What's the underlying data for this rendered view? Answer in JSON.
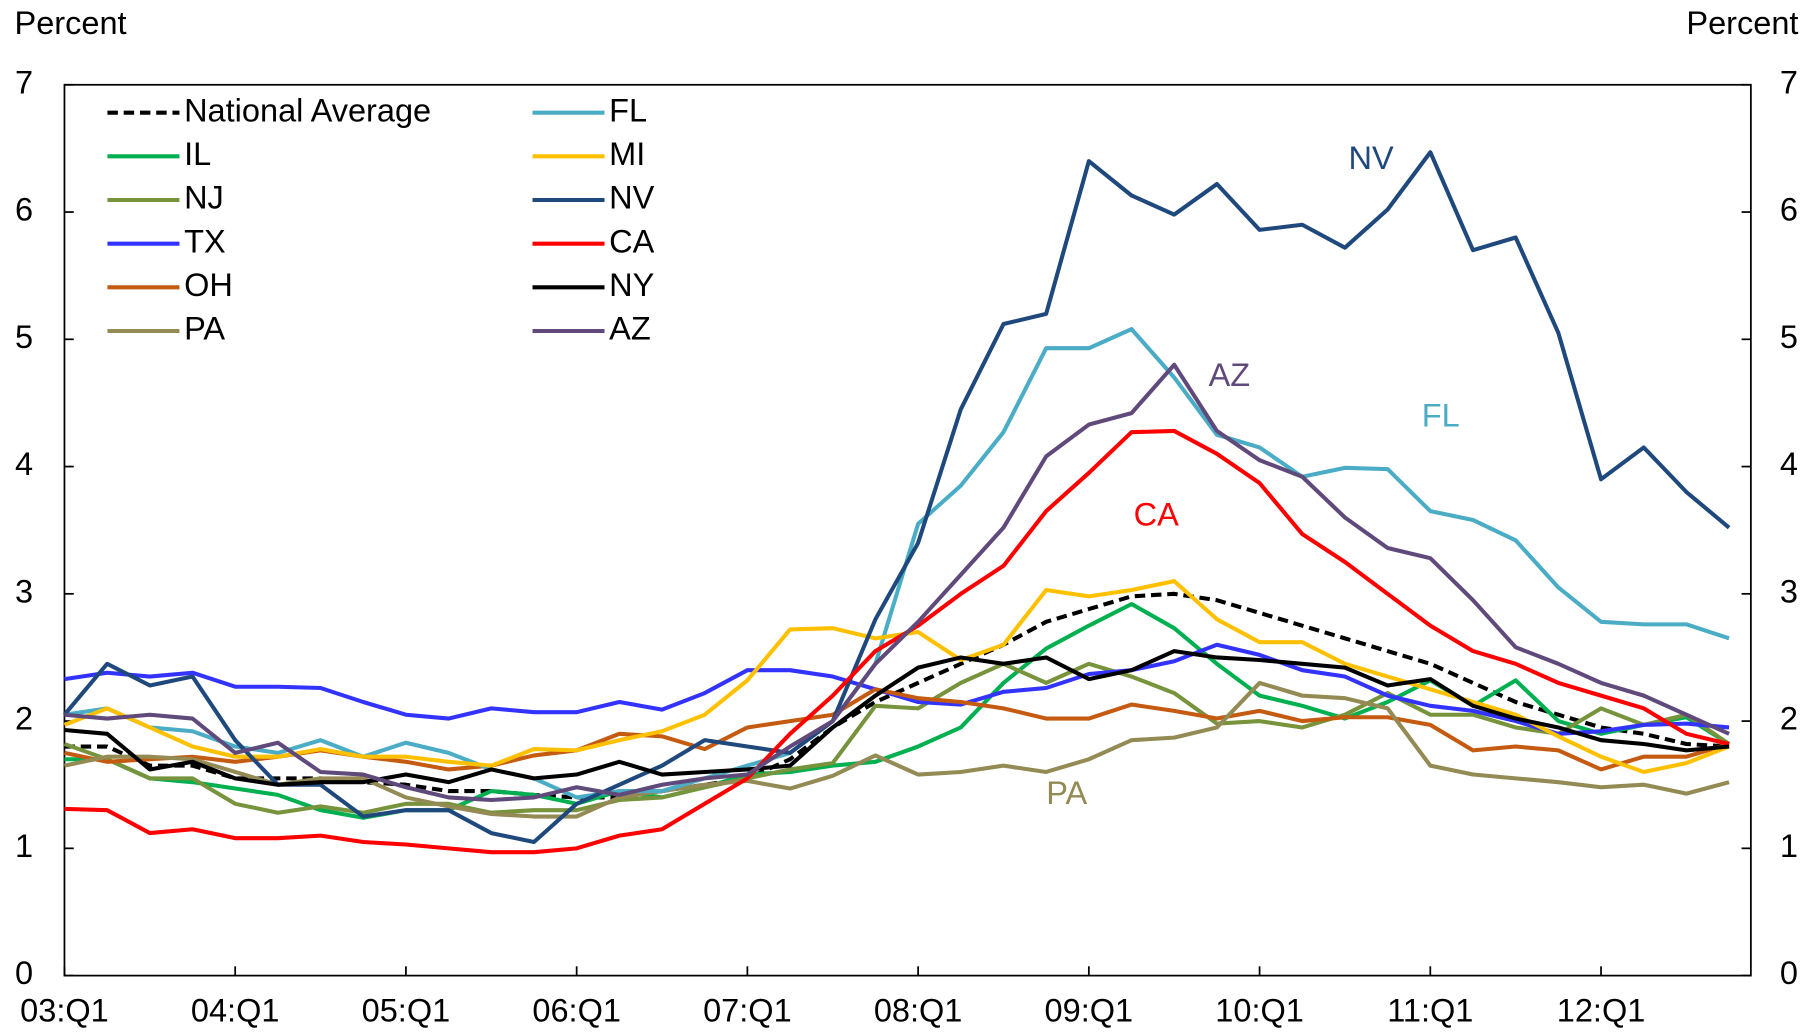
{
  "chart_data": {
    "type": "line",
    "y_label": "Percent",
    "y2_label": "Percent",
    "categories": [
      "03:Q1",
      null,
      null,
      null,
      "04:Q1",
      null,
      null,
      null,
      "05:Q1",
      null,
      null,
      null,
      "06:Q1",
      null,
      null,
      null,
      "07:Q1",
      null,
      null,
      null,
      "08:Q1",
      null,
      null,
      null,
      "09:Q1",
      null,
      null,
      null,
      "10:Q1",
      null,
      null,
      null,
      "11:Q1",
      null,
      null,
      null,
      "12:Q1",
      null,
      null,
      null
    ],
    "ylim": [
      0,
      7
    ],
    "yticks": [
      0,
      1,
      2,
      3,
      4,
      5,
      6,
      7
    ],
    "y2lim": [
      0,
      7
    ],
    "y2ticks": [
      0,
      1,
      2,
      3,
      4,
      5,
      6,
      7
    ],
    "grid": false,
    "legend": "upper left",
    "annotations": [
      "NV",
      "AZ",
      "FL",
      "CA",
      "PA"
    ],
    "series": [
      {
        "name": "National Average",
        "color": "#000000",
        "dash": true,
        "values": [
          1.8,
          1.8,
          1.65,
          1.65,
          1.55,
          1.55,
          1.55,
          1.52,
          1.5,
          1.45,
          1.45,
          1.42,
          1.4,
          1.4,
          1.45,
          1.5,
          1.55,
          1.7,
          1.95,
          2.15,
          2.3,
          2.45,
          2.6,
          2.78,
          2.88,
          2.98,
          3.0,
          2.95,
          2.85,
          2.75,
          2.65,
          2.55,
          2.45,
          2.3,
          2.15,
          2.05,
          1.95,
          1.9,
          1.82,
          1.8
        ]
      },
      {
        "name": "IL",
        "color": "#00b050",
        "values": [
          1.7,
          1.7,
          1.55,
          1.52,
          1.47,
          1.42,
          1.3,
          1.24,
          1.3,
          1.3,
          1.45,
          1.42,
          1.35,
          1.45,
          1.4,
          1.48,
          1.58,
          1.6,
          1.65,
          1.68,
          1.8,
          1.95,
          2.3,
          2.57,
          2.75,
          2.92,
          2.73,
          2.45,
          2.2,
          2.12,
          2.02,
          2.15,
          2.32,
          2.12,
          2.32,
          2.0,
          1.9,
          1.97,
          2.03,
          1.82
        ]
      },
      {
        "name": "NJ",
        "color": "#77933c",
        "values": [
          1.82,
          1.7,
          1.55,
          1.55,
          1.35,
          1.28,
          1.33,
          1.28,
          1.35,
          1.35,
          1.28,
          1.3,
          1.3,
          1.38,
          1.4,
          1.48,
          1.55,
          1.62,
          1.67,
          2.12,
          2.1,
          2.3,
          2.45,
          2.3,
          2.45,
          2.35,
          2.22,
          1.98,
          2.0,
          1.95,
          2.05,
          2.22,
          2.05,
          2.05,
          1.95,
          1.9,
          2.1,
          1.97,
          2.05,
          1.82
        ]
      },
      {
        "name": "TX",
        "color": "#3333ff",
        "values": [
          2.33,
          2.38,
          2.35,
          2.38,
          2.27,
          2.27,
          2.26,
          2.15,
          2.05,
          2.02,
          2.1,
          2.07,
          2.07,
          2.15,
          2.09,
          2.22,
          2.4,
          2.4,
          2.35,
          2.25,
          2.15,
          2.13,
          2.23,
          2.26,
          2.37,
          2.4,
          2.47,
          2.6,
          2.52,
          2.4,
          2.35,
          2.2,
          2.12,
          2.08,
          2.0,
          1.9,
          1.92,
          1.97,
          1.98,
          1.95
        ]
      },
      {
        "name": "OH",
        "color": "#c55a11",
        "values": [
          1.75,
          1.68,
          1.7,
          1.72,
          1.68,
          1.72,
          1.77,
          1.72,
          1.68,
          1.62,
          1.65,
          1.73,
          1.77,
          1.9,
          1.88,
          1.78,
          1.95,
          2.0,
          2.05,
          2.25,
          2.18,
          2.15,
          2.1,
          2.02,
          2.02,
          2.13,
          2.08,
          2.02,
          2.08,
          2.0,
          2.03,
          2.03,
          1.97,
          1.77,
          1.8,
          1.77,
          1.62,
          1.72,
          1.72,
          1.82
        ]
      },
      {
        "name": "PA",
        "color": "#948a54",
        "values": [
          1.65,
          1.72,
          1.72,
          1.7,
          1.6,
          1.5,
          1.55,
          1.55,
          1.4,
          1.33,
          1.27,
          1.25,
          1.25,
          1.4,
          1.45,
          1.5,
          1.53,
          1.47,
          1.57,
          1.73,
          1.58,
          1.6,
          1.65,
          1.6,
          1.7,
          1.85,
          1.87,
          1.95,
          2.3,
          2.2,
          2.18,
          2.1,
          1.65,
          1.58,
          1.55,
          1.52,
          1.48,
          1.5,
          1.43,
          1.52
        ]
      },
      {
        "name": "FL",
        "color": "#4bacc6",
        "values": [
          2.05,
          2.1,
          1.95,
          1.92,
          1.8,
          1.75,
          1.85,
          1.72,
          1.83,
          1.75,
          1.62,
          1.55,
          1.4,
          1.45,
          1.45,
          1.55,
          1.65,
          1.75,
          2.0,
          2.45,
          3.55,
          3.85,
          4.27,
          4.93,
          4.93,
          5.08,
          4.7,
          4.25,
          4.15,
          3.92,
          3.99,
          3.98,
          3.65,
          3.58,
          3.42,
          3.05,
          2.78,
          2.76,
          2.76,
          2.65
        ]
      },
      {
        "name": "MI",
        "color": "#ffc000",
        "values": [
          1.97,
          2.1,
          1.95,
          1.8,
          1.72,
          1.72,
          1.78,
          1.72,
          1.72,
          1.68,
          1.65,
          1.78,
          1.77,
          1.85,
          1.92,
          2.05,
          2.32,
          2.72,
          2.73,
          2.65,
          2.7,
          2.48,
          2.6,
          3.03,
          2.98,
          3.03,
          3.1,
          2.8,
          2.62,
          2.62,
          2.45,
          2.35,
          2.25,
          2.15,
          2.05,
          1.88,
          1.72,
          1.6,
          1.67,
          1.8
        ]
      },
      {
        "name": "NV",
        "color": "#1f497d",
        "values": [
          2.05,
          2.45,
          2.28,
          2.35,
          1.85,
          1.5,
          1.5,
          1.25,
          1.3,
          1.3,
          1.12,
          1.05,
          1.35,
          1.5,
          1.65,
          1.85,
          1.8,
          1.75,
          2.0,
          2.8,
          3.4,
          4.45,
          5.12,
          5.2,
          6.4,
          6.13,
          5.98,
          6.22,
          5.86,
          5.9,
          5.72,
          6.02,
          6.47,
          5.7,
          5.8,
          5.05,
          3.9,
          4.15,
          3.8,
          3.52
        ]
      },
      {
        "name": "CA",
        "color": "#ff0000",
        "values": [
          1.31,
          1.3,
          1.12,
          1.15,
          1.08,
          1.08,
          1.1,
          1.05,
          1.03,
          1.0,
          0.97,
          0.97,
          1.0,
          1.1,
          1.15,
          1.35,
          1.55,
          1.9,
          2.2,
          2.55,
          2.75,
          3.0,
          3.22,
          3.65,
          3.95,
          4.27,
          4.28,
          4.1,
          3.87,
          3.47,
          3.25,
          3.0,
          2.75,
          2.55,
          2.45,
          2.3,
          2.2,
          2.1,
          1.9,
          1.82
        ]
      },
      {
        "name": "NY",
        "color": "#000000",
        "values": [
          1.93,
          1.9,
          1.62,
          1.68,
          1.55,
          1.5,
          1.52,
          1.52,
          1.58,
          1.52,
          1.62,
          1.55,
          1.58,
          1.68,
          1.58,
          1.6,
          1.62,
          1.65,
          1.95,
          2.2,
          2.42,
          2.5,
          2.45,
          2.5,
          2.33,
          2.4,
          2.55,
          2.5,
          2.48,
          2.45,
          2.42,
          2.28,
          2.33,
          2.12,
          2.02,
          1.95,
          1.85,
          1.82,
          1.77,
          1.8
        ]
      },
      {
        "name": "AZ",
        "color": "#604a7b",
        "values": [
          2.05,
          2.02,
          2.05,
          2.02,
          1.75,
          1.83,
          1.6,
          1.58,
          1.48,
          1.4,
          1.38,
          1.4,
          1.48,
          1.42,
          1.5,
          1.55,
          1.58,
          1.8,
          2.0,
          2.45,
          2.78,
          3.15,
          3.52,
          4.08,
          4.33,
          4.42,
          4.8,
          4.28,
          4.05,
          3.92,
          3.6,
          3.36,
          3.28,
          2.95,
          2.58,
          2.45,
          2.3,
          2.2,
          2.05,
          1.9
        ]
      }
    ]
  }
}
